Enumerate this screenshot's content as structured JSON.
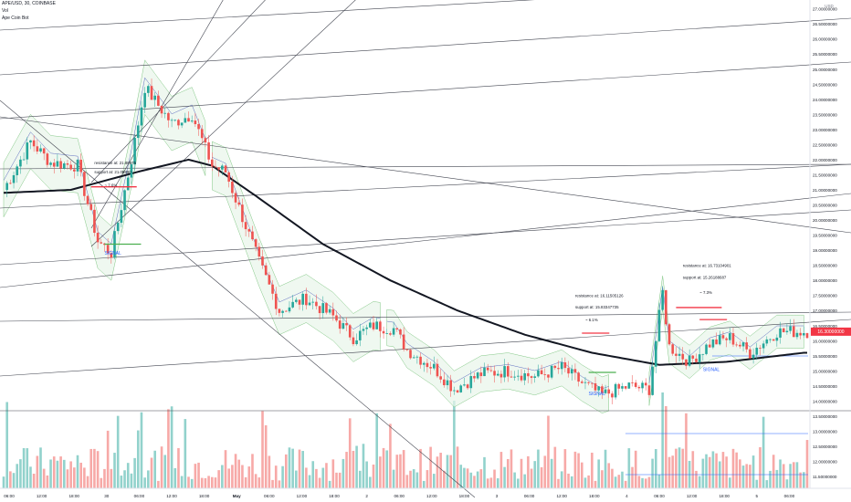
{
  "header": {
    "symbol": "APE/USD, 30, COINBASE",
    "indicator_1": "Vol",
    "indicator_2": "Ape Coin Bot"
  },
  "chart_data": {
    "type": "candlestick",
    "currency": "USD",
    "y_ticks": [
      "27.00000000",
      "26.50000000",
      "26.00000000",
      "25.50000000",
      "25.00000000",
      "24.50000000",
      "24.00000000",
      "23.50000000",
      "23.00000000",
      "22.50000000",
      "22.00000000",
      "21.50000000",
      "21.00000000",
      "20.50000000",
      "20.00000000",
      "19.50000000",
      "19.00000000",
      "18.50000000",
      "18.00000000",
      "17.50000000",
      "17.00000000",
      "16.50000000",
      "16.00000000",
      "15.50000000",
      "15.00000000",
      "14.50000000",
      "14.00000000",
      "13.50000000",
      "13.00000000",
      "12.50000000",
      "12.00000000",
      "11.50000000"
    ],
    "ylim": [
      11.35,
      27.05
    ],
    "last_price": "16.30000000",
    "x_ticks": [
      "06:00",
      "12:00",
      "18:00",
      "30",
      "06:00",
      "12:00",
      "18:00",
      "May",
      "06:00",
      "12:00",
      "18:00",
      "2",
      "06:00",
      "12:00",
      "18:00",
      "3",
      "06:00",
      "12:00",
      "18:00",
      "4",
      "06:00",
      "12:00",
      "18:00",
      "5",
      "06:00"
    ],
    "close_path": [
      {
        "i": 0,
        "v": 21.0
      },
      {
        "i": 8,
        "v": 22.6
      },
      {
        "i": 14,
        "v": 21.9
      },
      {
        "i": 22,
        "v": 21.8
      },
      {
        "i": 28,
        "v": 19.3
      },
      {
        "i": 32,
        "v": 18.9
      },
      {
        "i": 38,
        "v": 22.0
      },
      {
        "i": 42,
        "v": 24.4
      },
      {
        "i": 50,
        "v": 23.2
      },
      {
        "i": 56,
        "v": 23.5
      },
      {
        "i": 62,
        "v": 21.8
      },
      {
        "i": 66,
        "v": 21.6
      },
      {
        "i": 70,
        "v": 20.4
      },
      {
        "i": 76,
        "v": 18.6
      },
      {
        "i": 82,
        "v": 17.0
      },
      {
        "i": 90,
        "v": 17.4
      },
      {
        "i": 98,
        "v": 16.8
      },
      {
        "i": 104,
        "v": 16.1
      },
      {
        "i": 110,
        "v": 16.5
      },
      {
        "i": 116,
        "v": 16.4
      },
      {
        "i": 120,
        "v": 15.7
      },
      {
        "i": 128,
        "v": 15.1
      },
      {
        "i": 134,
        "v": 14.4
      },
      {
        "i": 142,
        "v": 14.9
      },
      {
        "i": 150,
        "v": 15.0
      },
      {
        "i": 158,
        "v": 14.8
      },
      {
        "i": 166,
        "v": 15.1
      },
      {
        "i": 172,
        "v": 14.6
      },
      {
        "i": 178,
        "v": 14.2
      },
      {
        "i": 186,
        "v": 14.5
      },
      {
        "i": 192,
        "v": 14.4
      },
      {
        "i": 196,
        "v": 17.6
      },
      {
        "i": 198,
        "v": 15.8
      },
      {
        "i": 204,
        "v": 15.3
      },
      {
        "i": 210,
        "v": 15.9
      },
      {
        "i": 216,
        "v": 16.1
      },
      {
        "i": 222,
        "v": 15.6
      },
      {
        "i": 230,
        "v": 16.3
      },
      {
        "i": 238,
        "v": 16.3
      }
    ],
    "ma_line": [
      {
        "i": 0,
        "v": 20.9
      },
      {
        "i": 20,
        "v": 21.0
      },
      {
        "i": 40,
        "v": 21.6
      },
      {
        "i": 55,
        "v": 22.0
      },
      {
        "i": 62,
        "v": 21.8
      },
      {
        "i": 75,
        "v": 20.8
      },
      {
        "i": 95,
        "v": 19.2
      },
      {
        "i": 115,
        "v": 18.0
      },
      {
        "i": 135,
        "v": 17.0
      },
      {
        "i": 155,
        "v": 16.2
      },
      {
        "i": 175,
        "v": 15.6
      },
      {
        "i": 195,
        "v": 15.2
      },
      {
        "i": 215,
        "v": 15.3
      },
      {
        "i": 238,
        "v": 15.6
      }
    ],
    "annotations": [
      {
        "text": "resistance at: 21.88675",
        "i": 27,
        "v": 21.85
      },
      {
        "text": "support at: 21.08890",
        "i": 27,
        "v": 21.55
      },
      {
        "text": "~ 7.6%",
        "i": 30,
        "v": 21.1
      },
      {
        "text": "SIGNAL",
        "i": 30,
        "v": 18.85
      },
      {
        "text": "resistance at: 16.11505126",
        "i": 170,
        "v": 17.45
      },
      {
        "text": "support at: 15.83347735",
        "i": 170,
        "v": 17.07
      },
      {
        "text": "~ 6.1%",
        "i": 173,
        "v": 16.65
      },
      {
        "text": "SIGNAL",
        "i": 174,
        "v": 14.2
      },
      {
        "text": "resistance at: 16.73104901",
        "i": 202,
        "v": 18.45
      },
      {
        "text": "support at: 15.26188687",
        "i": 202,
        "v": 18.05
      },
      {
        "text": "~ 7.3%",
        "i": 207,
        "v": 17.55
      },
      {
        "text": "SIGNAL",
        "i": 208,
        "v": 15.0
      }
    ]
  }
}
